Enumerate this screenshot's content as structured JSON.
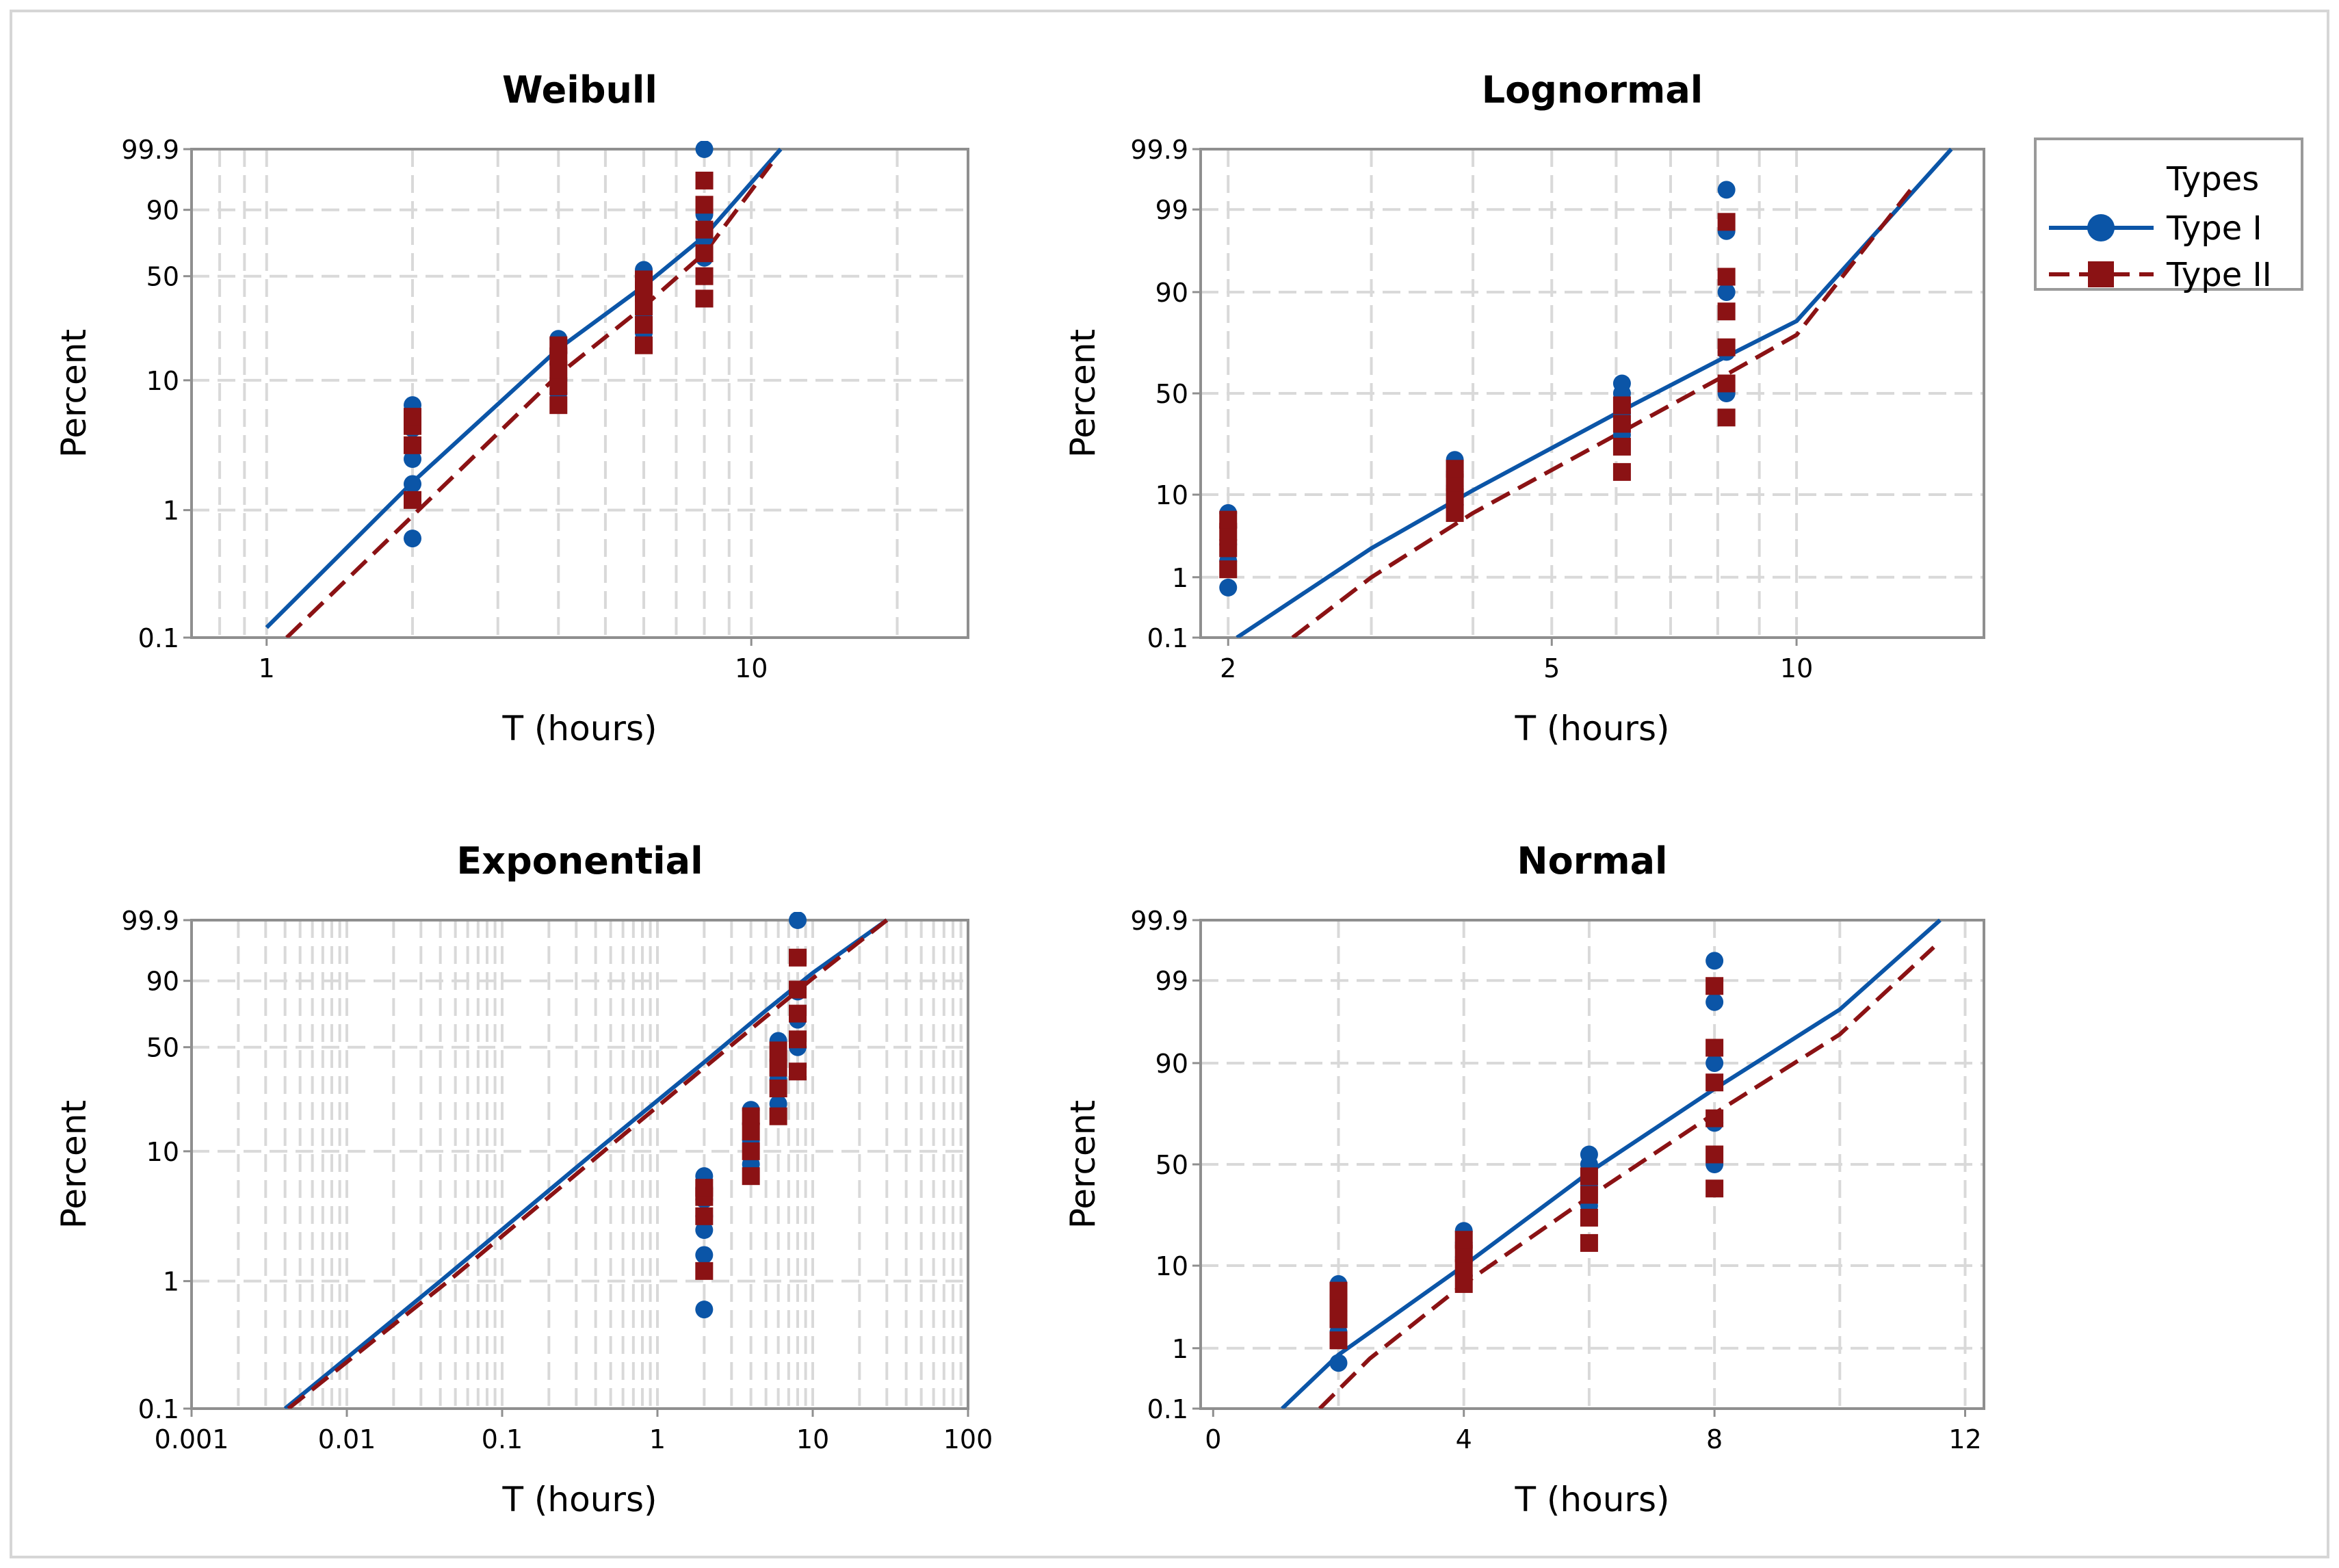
{
  "legend": {
    "title": "Types",
    "entries": [
      {
        "label": "Type I",
        "color": "#0b55a7",
        "marker": "circle",
        "line": "solid"
      },
      {
        "label": "Type II",
        "color": "#8b1214",
        "marker": "square",
        "line": "dashed"
      }
    ]
  },
  "axis_text": {
    "ylabel": "Percent",
    "xlabel": "T (hours)"
  },
  "chart_data": [
    {
      "type": "scatter",
      "title": "Weibull",
      "xlabel": "T (hours)",
      "ylabel": "Percent",
      "x_scale": "log",
      "y_scale": "weibull",
      "xlim": [
        0.7,
        28
      ],
      "ylim": [
        0.1,
        99.9
      ],
      "xticks": [
        1,
        10
      ],
      "yticks": [
        0.1,
        1,
        10,
        50,
        90,
        99.9
      ],
      "grid": true,
      "series": [
        {
          "name": "Type I",
          "points": [
            [
              2,
              0.6
            ],
            [
              2,
              1.6
            ],
            [
              2,
              2.5
            ],
            [
              2,
              3.2
            ],
            [
              2,
              4.3
            ],
            [
              2,
              5.3
            ],
            [
              2,
              6.5
            ],
            [
              4,
              8
            ],
            [
              4,
              10
            ],
            [
              4,
              13
            ],
            [
              4,
              16
            ],
            [
              4,
              20
            ],
            [
              6,
              22
            ],
            [
              6,
              30
            ],
            [
              6,
              38
            ],
            [
              6,
              46
            ],
            [
              6,
              54
            ],
            [
              8,
              50
            ],
            [
              8,
              62
            ],
            [
              8,
              75
            ],
            [
              8,
              88
            ],
            [
              8,
              99.9
            ]
          ],
          "fit": [
            [
              1,
              0.12
            ],
            [
              2,
              1.65
            ],
            [
              4,
              17
            ],
            [
              6,
              44
            ],
            [
              8,
              76
            ],
            [
              11.5,
              99.9
            ]
          ]
        },
        {
          "name": "Type II",
          "points": [
            [
              2,
              1.2
            ],
            [
              2,
              3.2
            ],
            [
              2,
              4.5
            ],
            [
              2,
              5.3
            ],
            [
              4,
              6.5
            ],
            [
              4,
              9
            ],
            [
              4,
              12
            ],
            [
              4,
              15
            ],
            [
              4,
              18
            ],
            [
              6,
              18
            ],
            [
              6,
              25
            ],
            [
              6,
              33
            ],
            [
              6,
              40
            ],
            [
              6,
              48
            ],
            [
              8,
              37
            ],
            [
              8,
              50
            ],
            [
              8,
              65
            ],
            [
              8,
              80
            ],
            [
              8,
              92
            ],
            [
              8,
              98
            ]
          ],
          "fit": [
            [
              1.1,
              0.1
            ],
            [
              2,
              0.9
            ],
            [
              4,
              11
            ],
            [
              6,
              33
            ],
            [
              8,
              65
            ],
            [
              11,
              99.5
            ]
          ]
        }
      ]
    },
    {
      "type": "scatter",
      "title": "Lognormal",
      "xlabel": "T (hours)",
      "ylabel": "Percent",
      "x_scale": "log",
      "y_scale": "probit",
      "xlim": [
        1.85,
        17
      ],
      "ylim": [
        0.1,
        99.9
      ],
      "xticks": [
        2,
        5,
        10
      ],
      "yticks": [
        0.1,
        1,
        10,
        50,
        90,
        99,
        99.9
      ],
      "grid": true,
      "series": [
        {
          "name": "Type I",
          "points": [
            [
              2,
              0.7
            ],
            [
              2,
              1.7
            ],
            [
              2,
              2.8
            ],
            [
              2,
              4.5
            ],
            [
              2,
              6.5
            ],
            [
              3.8,
              8
            ],
            [
              3.8,
              12
            ],
            [
              3.8,
              16
            ],
            [
              3.8,
              20
            ],
            [
              6.1,
              30
            ],
            [
              6.1,
              40
            ],
            [
              6.1,
              50
            ],
            [
              6.1,
              55
            ],
            [
              8.2,
              50
            ],
            [
              8.2,
              70
            ],
            [
              8.2,
              90
            ],
            [
              8.2,
              98
            ],
            [
              8.2,
              99.5
            ]
          ],
          "fit": [
            [
              2.05,
              0.1
            ],
            [
              3,
              2.5
            ],
            [
              4,
              11
            ],
            [
              6,
              40
            ],
            [
              8,
              66
            ],
            [
              10,
              82
            ],
            [
              15.5,
              99.9
            ]
          ]
        },
        {
          "name": "Type II",
          "points": [
            [
              2,
              1.3
            ],
            [
              2,
              2.5
            ],
            [
              2,
              4
            ],
            [
              2,
              5.5
            ],
            [
              3.8,
              6.5
            ],
            [
              3.8,
              9.5
            ],
            [
              3.8,
              13
            ],
            [
              3.8,
              17
            ],
            [
              6.1,
              16
            ],
            [
              6.1,
              25
            ],
            [
              6.1,
              35
            ],
            [
              6.1,
              44
            ],
            [
              8.2,
              38
            ],
            [
              8.2,
              55
            ],
            [
              8.2,
              72
            ],
            [
              8.2,
              85
            ],
            [
              8.2,
              93
            ],
            [
              8.2,
              98.5
            ]
          ],
          "fit": [
            [
              2.4,
              0.1
            ],
            [
              3,
              1
            ],
            [
              4,
              6.5
            ],
            [
              6,
              30
            ],
            [
              8,
              57
            ],
            [
              10,
              77
            ],
            [
              14,
              99.6
            ]
          ]
        }
      ]
    },
    {
      "type": "scatter",
      "title": "Exponential",
      "xlabel": "T (hours)",
      "ylabel": "Percent",
      "x_scale": "log",
      "y_scale": "weibull",
      "xlim": [
        0.001,
        100
      ],
      "ylim": [
        0.1,
        99.9
      ],
      "xticks": [
        0.001,
        0.01,
        0.1,
        1,
        10,
        100
      ],
      "yticks": [
        0.1,
        1,
        10,
        50,
        90,
        99.9
      ],
      "grid": true,
      "series": [
        {
          "name": "Type I",
          "points": [
            [
              2,
              0.6
            ],
            [
              2,
              1.6
            ],
            [
              2,
              2.5
            ],
            [
              2,
              3.2
            ],
            [
              2,
              4.3
            ],
            [
              2,
              5.3
            ],
            [
              2,
              6.5
            ],
            [
              4,
              8
            ],
            [
              4,
              12
            ],
            [
              4,
              16
            ],
            [
              4,
              20
            ],
            [
              6,
              22
            ],
            [
              6,
              32
            ],
            [
              6,
              42
            ],
            [
              6,
              54
            ],
            [
              8,
              50
            ],
            [
              8,
              68
            ],
            [
              8,
              85
            ],
            [
              8,
              99.9
            ]
          ],
          "fit": [
            [
              0.004,
              0.1
            ],
            [
              0.04,
              1
            ],
            [
              0.4,
              10
            ],
            [
              2,
              41
            ],
            [
              5,
              74
            ],
            [
              10,
              93
            ],
            [
              30,
              99.9
            ]
          ]
        },
        {
          "name": "Type II",
          "points": [
            [
              2,
              1.2
            ],
            [
              2,
              3.2
            ],
            [
              2,
              4.5
            ],
            [
              2,
              5.3
            ],
            [
              4,
              6.5
            ],
            [
              4,
              10
            ],
            [
              4,
              14
            ],
            [
              4,
              18
            ],
            [
              6,
              18
            ],
            [
              6,
              28
            ],
            [
              6,
              38
            ],
            [
              6,
              48
            ],
            [
              8,
              36
            ],
            [
              8,
              55
            ],
            [
              8,
              72
            ],
            [
              8,
              86
            ],
            [
              8,
              97
            ]
          ],
          "fit": [
            [
              0.0042,
              0.1
            ],
            [
              0.045,
              1
            ],
            [
              0.45,
              10
            ],
            [
              2,
              38
            ],
            [
              5,
              70
            ],
            [
              10,
              91
            ],
            [
              30,
              99.9
            ]
          ]
        }
      ]
    },
    {
      "type": "scatter",
      "title": "Normal",
      "xlabel": "T (hours)",
      "ylabel": "Percent",
      "x_scale": "linear",
      "y_scale": "probit",
      "xlim": [
        -0.2,
        12.3
      ],
      "ylim": [
        0.1,
        99.9
      ],
      "xticks": [
        0,
        4,
        8,
        12
      ],
      "yticks": [
        0.1,
        1,
        10,
        50,
        90,
        99,
        99.9
      ],
      "grid": true,
      "series": [
        {
          "name": "Type I",
          "points": [
            [
              2,
              0.6
            ],
            [
              2,
              1.7
            ],
            [
              2,
              2.8
            ],
            [
              2,
              4.5
            ],
            [
              2,
              6.5
            ],
            [
              4,
              8
            ],
            [
              4,
              12
            ],
            [
              4,
              16
            ],
            [
              4,
              20
            ],
            [
              6,
              30
            ],
            [
              6,
              40
            ],
            [
              6,
              50
            ],
            [
              6,
              55
            ],
            [
              8,
              50
            ],
            [
              8,
              70
            ],
            [
              8,
              90
            ],
            [
              8,
              98
            ],
            [
              8,
              99.5
            ]
          ],
          "fit": [
            [
              1.1,
              0.1
            ],
            [
              2,
              0.8
            ],
            [
              4,
              10
            ],
            [
              6,
              46
            ],
            [
              8,
              83
            ],
            [
              10,
              97.5
            ],
            [
              11.6,
              99.9
            ]
          ]
        },
        {
          "name": "Type II",
          "points": [
            [
              2,
              1.3
            ],
            [
              2,
              2.5
            ],
            [
              2,
              4
            ],
            [
              2,
              5.5
            ],
            [
              4,
              6.5
            ],
            [
              4,
              9.5
            ],
            [
              4,
              13
            ],
            [
              4,
              17
            ],
            [
              6,
              16
            ],
            [
              6,
              25
            ],
            [
              6,
              35
            ],
            [
              6,
              44
            ],
            [
              8,
              38
            ],
            [
              8,
              55
            ],
            [
              8,
              72
            ],
            [
              8,
              85
            ],
            [
              8,
              93
            ],
            [
              8,
              98.8
            ]
          ],
          "fit": [
            [
              1.7,
              0.1
            ],
            [
              2.5,
              0.7
            ],
            [
              4,
              6.5
            ],
            [
              6,
              34
            ],
            [
              8,
              74
            ],
            [
              10,
              95
            ],
            [
              11.5,
              99.7
            ]
          ]
        }
      ]
    }
  ]
}
